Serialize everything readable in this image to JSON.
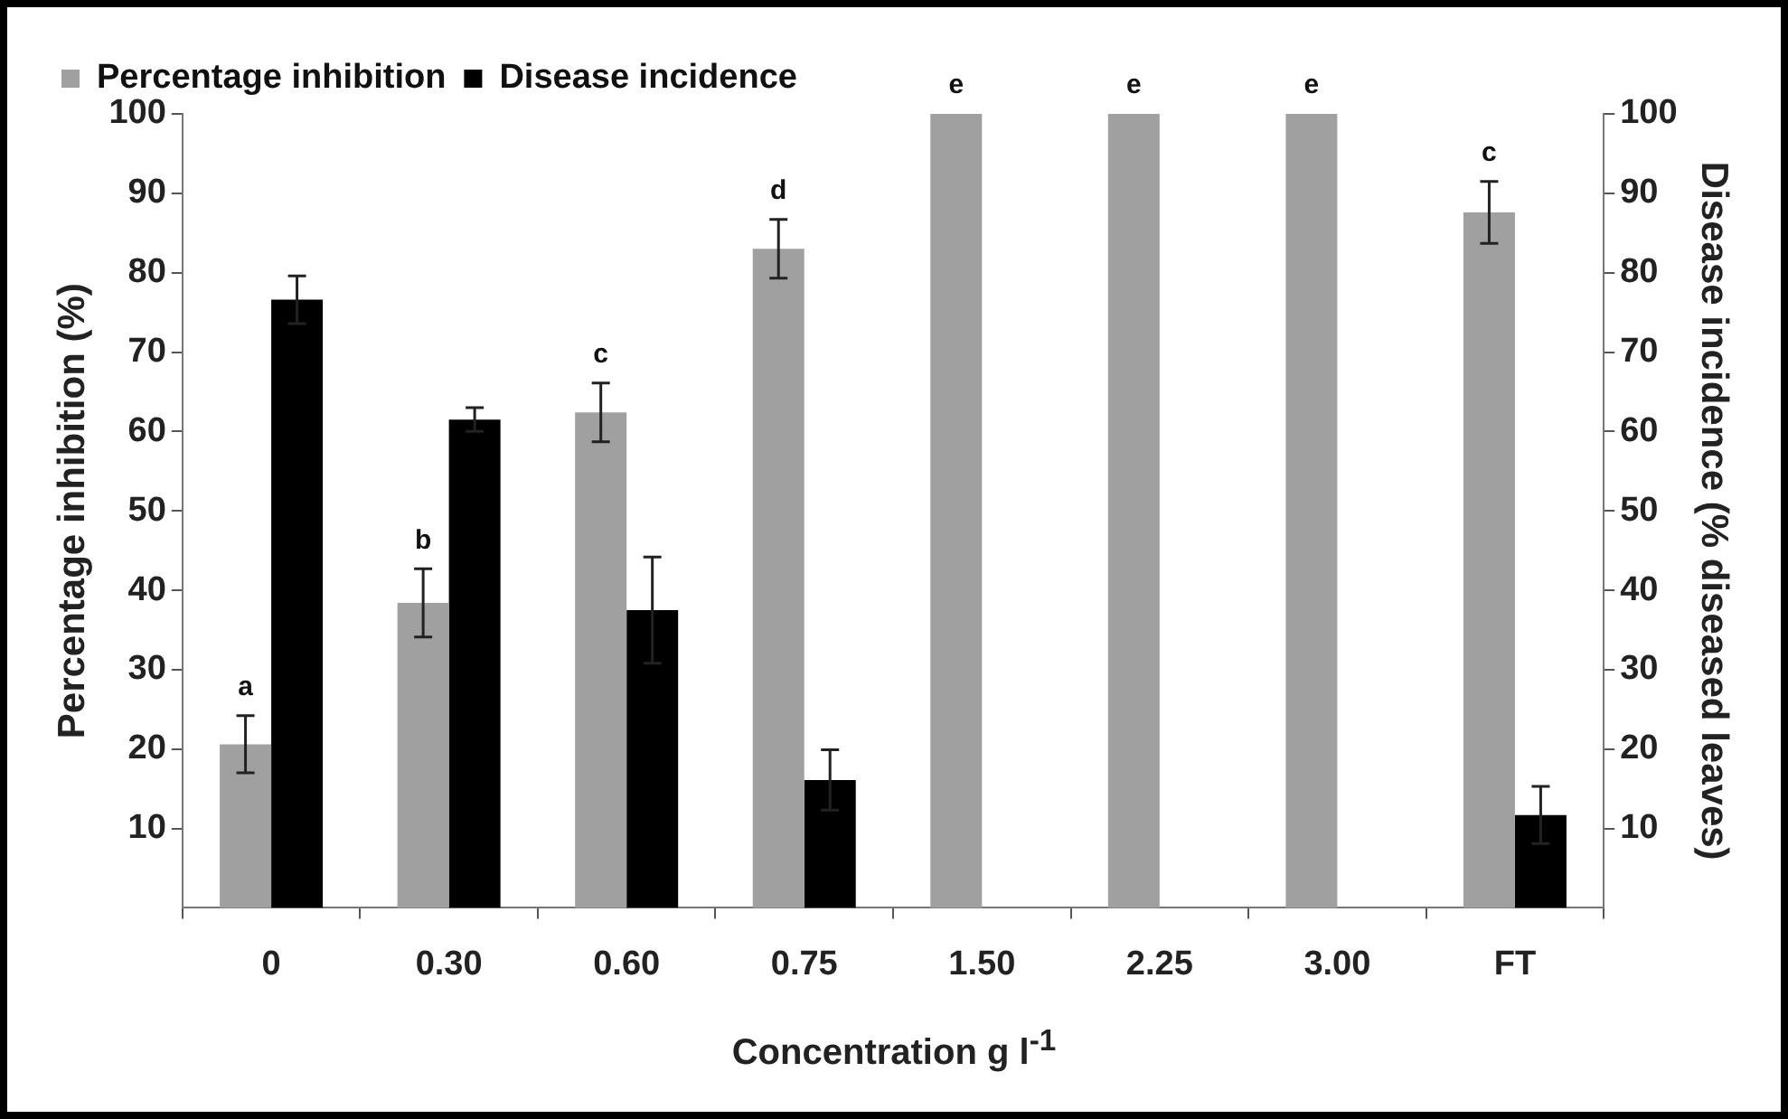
{
  "chart_data": {
    "type": "bar",
    "xlabel": "Concentration g l$^{-1}$",
    "ylabel": "Percentage inhibition (%)",
    "y2label": "Disease incidence (% diseased leaves)",
    "categories": [
      "0",
      "0.30",
      "0.60",
      "0.75",
      "1.50",
      "2.25",
      "3.00",
      "FT"
    ],
    "series": [
      {
        "name": "Percentage inhibition",
        "color": "#a0a0a0",
        "values": [
          20.6,
          38.4,
          62.4,
          83,
          100,
          100,
          100,
          87.6
        ],
        "errors": [
          3.6,
          4.3,
          3.7,
          3.7,
          null,
          null,
          null,
          3.9
        ],
        "value_labels": [
          "a",
          "b",
          "c",
          "d",
          "e",
          "e",
          "e",
          "c"
        ]
      },
      {
        "name": "Disease incidence",
        "color": "#000000",
        "axis": "y2",
        "values": [
          76.6,
          61.5,
          37.5,
          16.1,
          null,
          null,
          null,
          11.7
        ],
        "errors": [
          3,
          1.5,
          6.7,
          3.8,
          null,
          null,
          null,
          3.6
        ]
      }
    ],
    "ylim": [
      0,
      100
    ],
    "yticks": [
      10,
      20,
      30,
      40,
      50,
      60,
      70,
      80,
      90,
      100
    ],
    "y2lim": [
      0,
      100
    ],
    "y2ticks": [
      10,
      20,
      30,
      40,
      50,
      60,
      70,
      80,
      90,
      100
    ],
    "grid": false,
    "legend": "top left"
  }
}
